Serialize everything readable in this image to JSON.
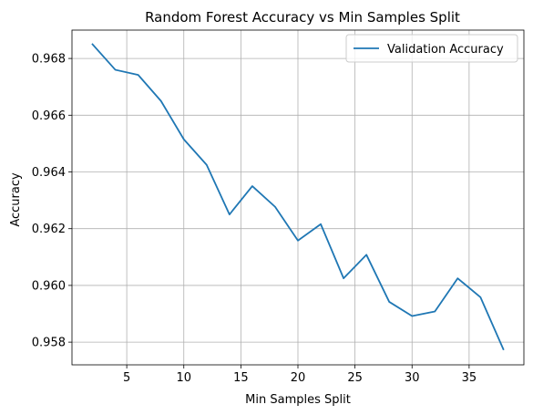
{
  "chart_data": {
    "type": "line",
    "title": "Random Forest Accuracy vs Min Samples Split",
    "xlabel": "Min Samples Split",
    "ylabel": "Accuracy",
    "xlim": [
      0.2,
      39.8
    ],
    "ylim": [
      0.9572,
      0.969
    ],
    "xticks": [
      5,
      10,
      15,
      20,
      25,
      30,
      35
    ],
    "yticks": [
      0.958,
      0.96,
      0.962,
      0.964,
      0.966,
      0.968
    ],
    "ytick_labels": [
      "0.958",
      "0.960",
      "0.962",
      "0.964",
      "0.966",
      "0.968"
    ],
    "grid": true,
    "legend": {
      "position": "top-right",
      "entries": [
        "Validation Accuracy"
      ]
    },
    "series": [
      {
        "name": "Validation Accuracy",
        "color": "#1f77b4",
        "x": [
          2,
          4,
          6,
          8,
          10,
          12,
          14,
          16,
          18,
          20,
          22,
          24,
          26,
          28,
          30,
          32,
          34,
          36,
          38
        ],
        "y": [
          0.9685,
          0.9676,
          0.96742,
          0.9665,
          0.96515,
          0.96425,
          0.9625,
          0.9635,
          0.96277,
          0.96158,
          0.96216,
          0.96025,
          0.96108,
          0.95942,
          0.95892,
          0.95908,
          0.96025,
          0.95958,
          0.95775
        ]
      }
    ]
  }
}
